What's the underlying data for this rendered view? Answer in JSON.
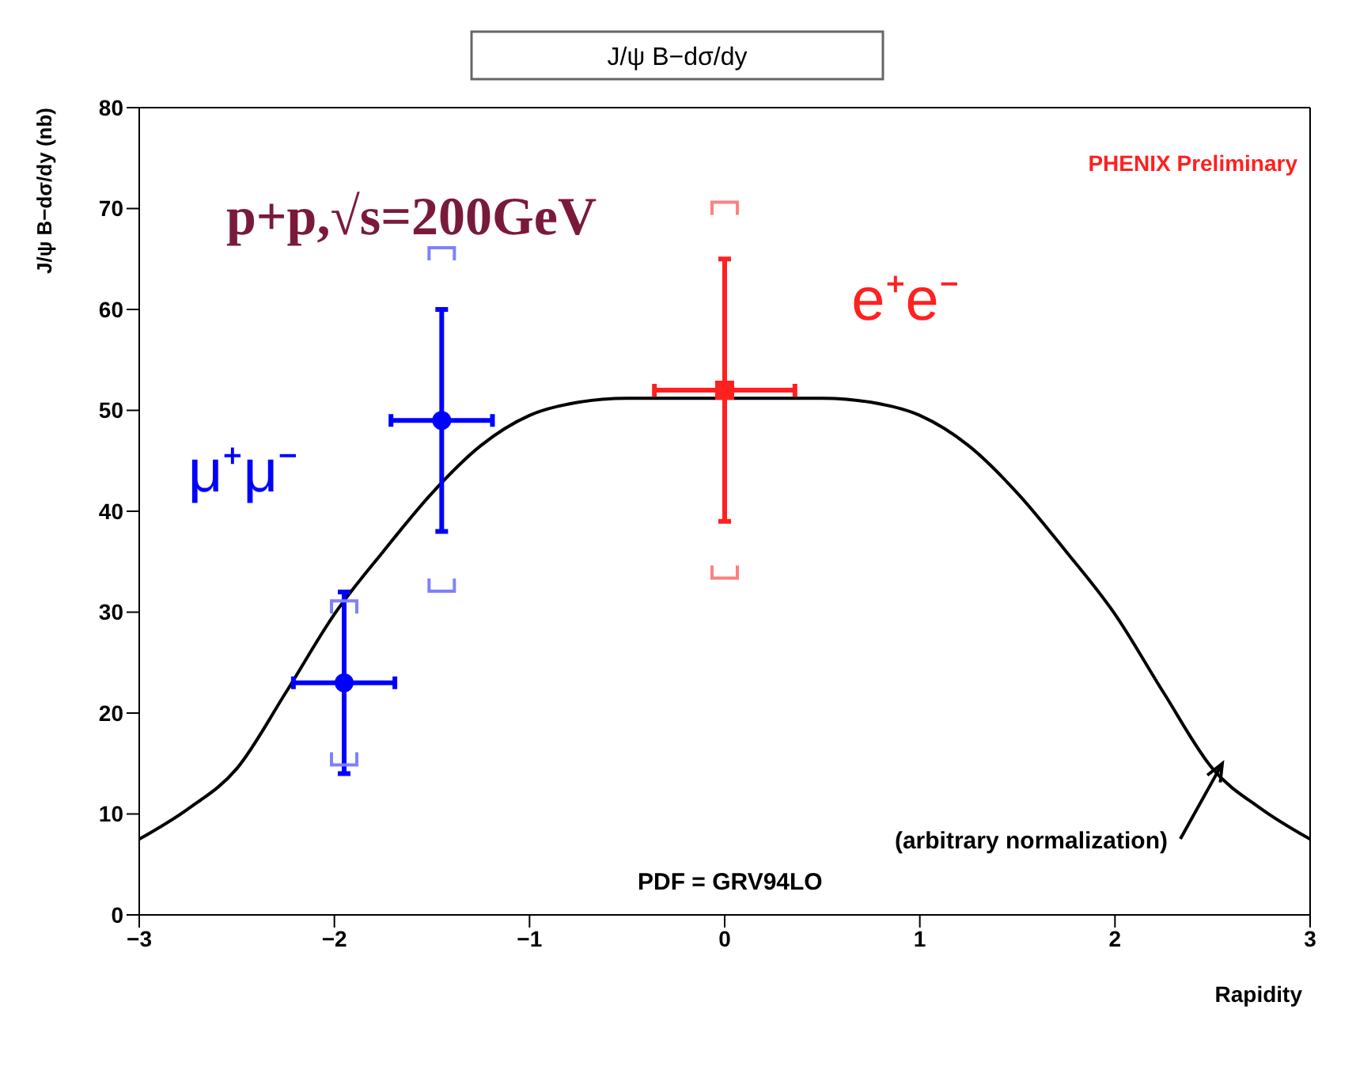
{
  "chart_data": {
    "type": "scatter",
    "title": "J/ψ B−dσ/dy",
    "xlabel": "Rapidity",
    "ylabel": "J/ψ B−dσ/dy (nb)",
    "xlim": [
      -3,
      3
    ],
    "xticks": [
      {
        "value": -3,
        "label": "−3"
      },
      {
        "value": -2,
        "label": "−2"
      },
      {
        "value": -1,
        "label": "−1"
      },
      0,
      1,
      2,
      3
    ],
    "ylim": [
      0,
      80
    ],
    "yticks": [
      0,
      10,
      20,
      30,
      40,
      50,
      60,
      70,
      80
    ],
    "annotations": [
      "p+p,√s=200GeV",
      "PHENIX Preliminary",
      "(arbitrary normalization)",
      "PDF = GRV94LO"
    ],
    "series": [
      {
        "name": "μ⁺μ⁻",
        "color": "#0000ff",
        "marker": "circle",
        "x": [
          -1.95,
          -1.45
        ],
        "values": [
          23,
          49
        ],
        "errors": [
          [
            14,
            32
          ],
          [
            38,
            60
          ]
        ],
        "xerrors": [
          0.26,
          0.26
        ]
      },
      {
        "color": "#8080ff",
        "x": [
          -1.95,
          -1.45
        ],
        "values": [
          30.5,
          65.5
        ]
      },
      {
        "color": "#8080ff",
        "x": [
          -1.95,
          -1.45
        ],
        "values": [
          15.5,
          32.7
        ]
      },
      {
        "name": "e⁺e⁻",
        "color": "#ff2020",
        "marker": "square",
        "x": [
          0
        ],
        "values": [
          52
        ],
        "errors": [
          [
            39,
            65
          ]
        ],
        "xerrors": [
          0.36
        ]
      },
      {
        "color": "#ff8080",
        "x": [
          0
        ],
        "values": [
          70
        ]
      },
      {
        "color": "#ff8080",
        "x": [
          0
        ],
        "values": [
          34
        ]
      },
      {
        "type": "line",
        "color": "#000000",
        "x": [
          -3,
          -2.75,
          -2.5,
          -2.25,
          -2,
          -1.75,
          -1.5,
          -1.25,
          -1,
          -0.75,
          -0.5,
          0.5,
          0.75,
          1,
          1.25,
          1.5,
          1.75,
          2,
          2.25,
          2.5,
          2.75,
          3
        ],
        "values": [
          7.5,
          10.5,
          14.5,
          22,
          29.8,
          36,
          41.8,
          46.5,
          49.5,
          50.8,
          51.2,
          51.2,
          50.8,
          49.5,
          46.5,
          41.8,
          36,
          29.8,
          22,
          14.5,
          10.5,
          7.5
        ]
      }
    ]
  }
}
